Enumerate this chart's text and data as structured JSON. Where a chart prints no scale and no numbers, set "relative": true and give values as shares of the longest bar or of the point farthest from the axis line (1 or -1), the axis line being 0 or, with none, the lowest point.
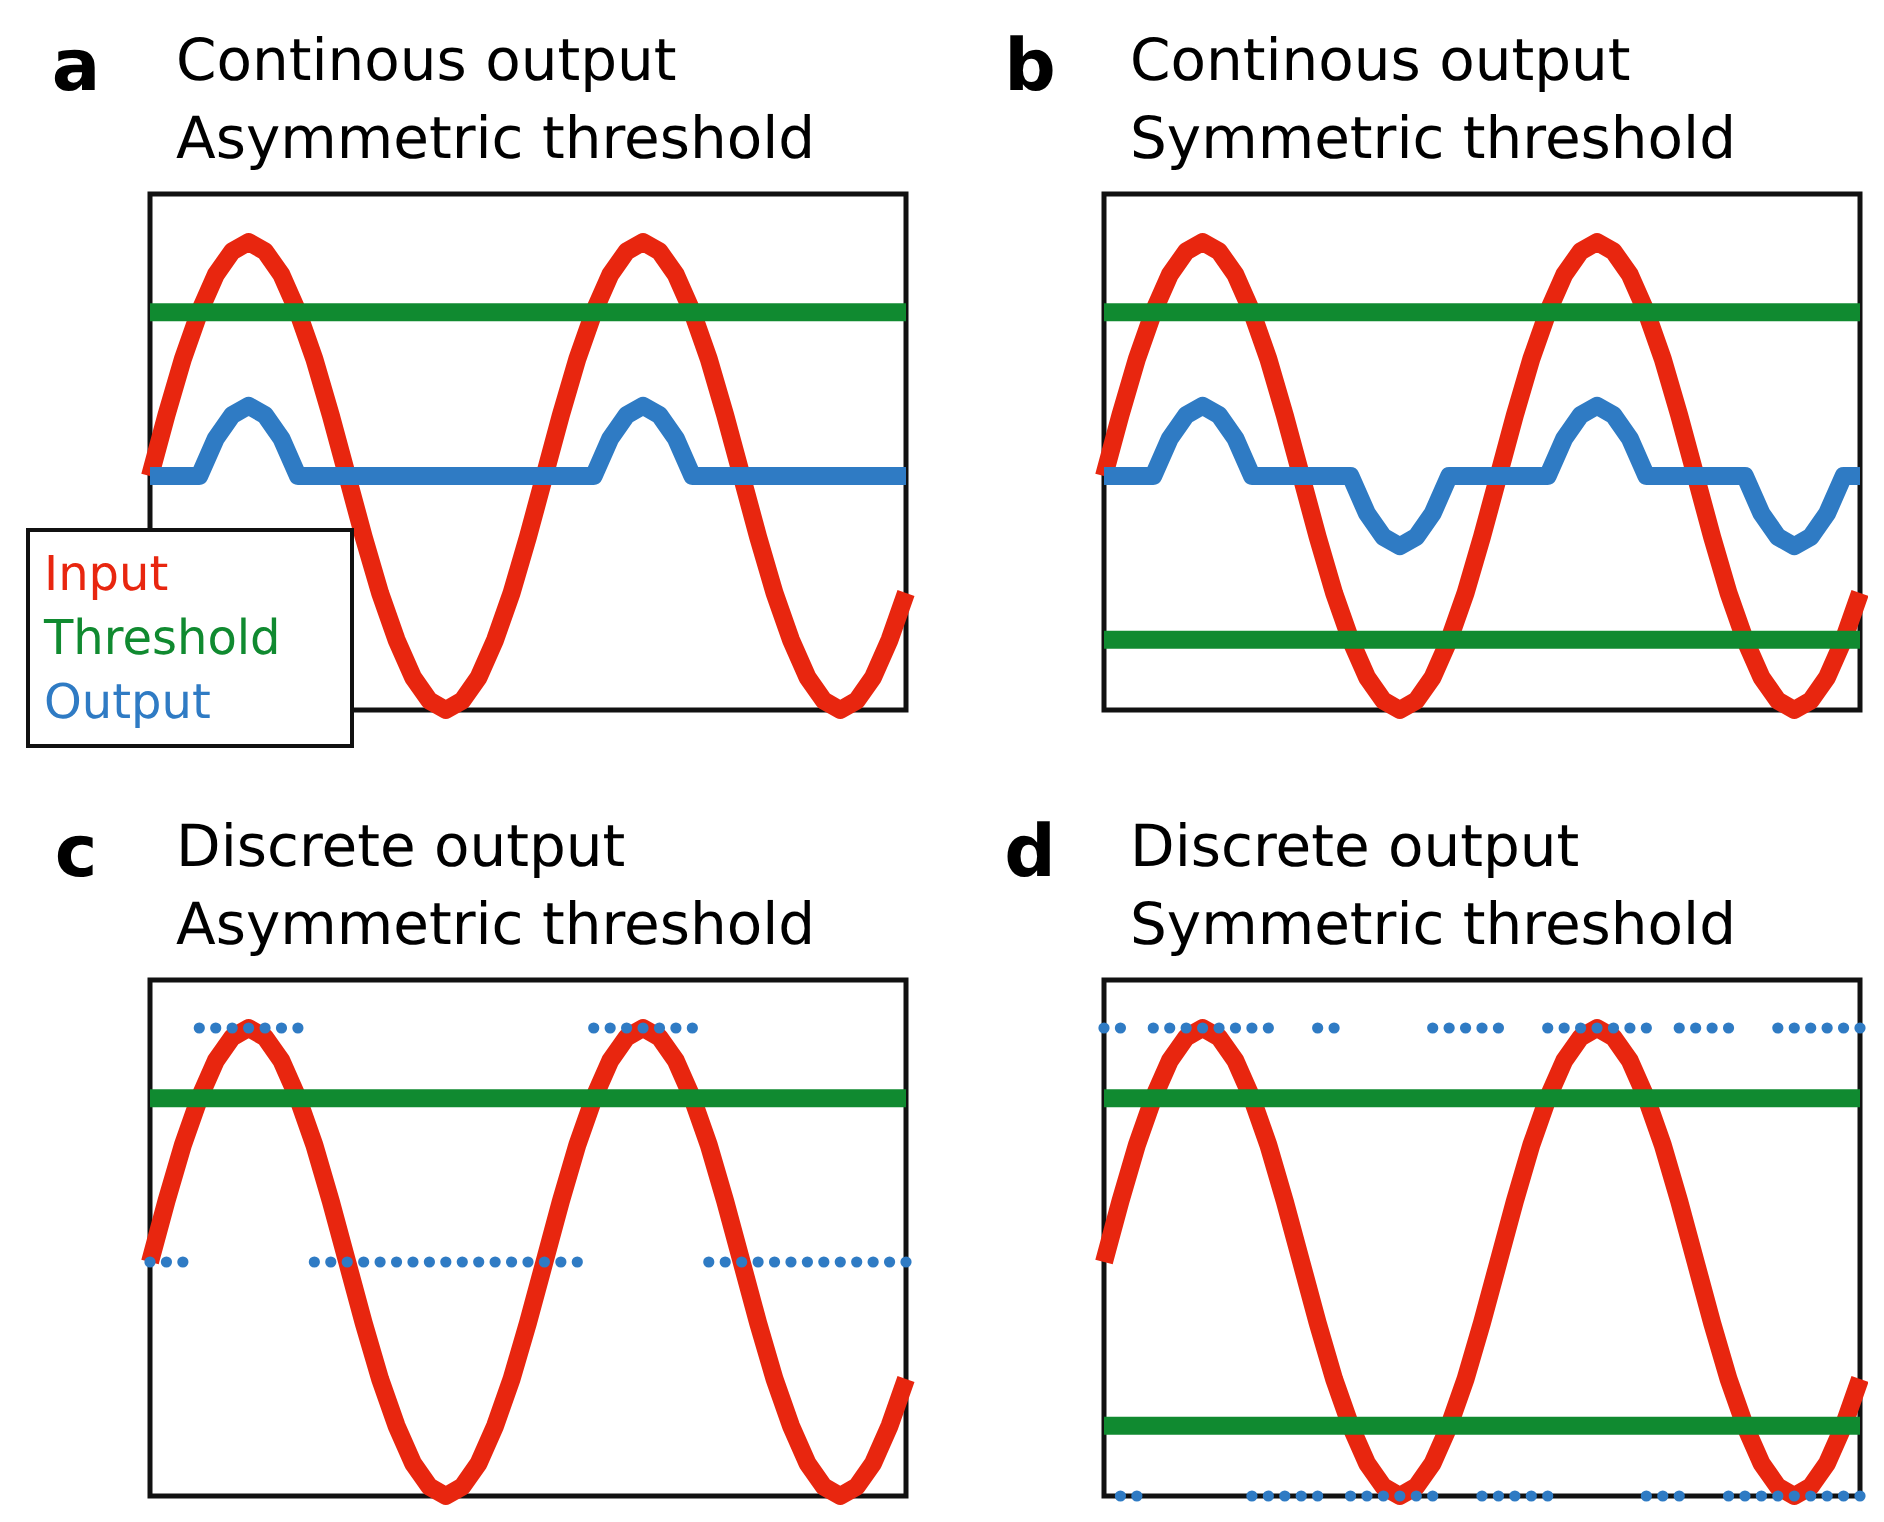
{
  "chart_data": [
    {
      "type": "line",
      "relative": true,
      "title": "Continous output",
      "subtitle": "Asymmetric threshold",
      "annotations": [
        "a"
      ],
      "legend": "bottom left",
      "categories": [
        null,
        null,
        null,
        null,
        null,
        null,
        null,
        null,
        null,
        null,
        null,
        null,
        null,
        null,
        null,
        null,
        null,
        null,
        null,
        null,
        null,
        null,
        null,
        null,
        null,
        null,
        null,
        null,
        null,
        null,
        null,
        null,
        null,
        null,
        null,
        null,
        null,
        null,
        null,
        null,
        null,
        null,
        null,
        null,
        null,
        null,
        null
      ],
      "series": [
        {
          "name": "Input",
          "color": "#e8260f",
          "values": [
            0.5,
            0.63,
            0.75,
            0.85,
            0.93,
            0.98,
            1,
            0.98,
            0.93,
            0.85,
            0.75,
            0.63,
            0.5,
            0.37,
            0.25,
            0.15,
            0.07,
            0.02,
            0,
            0.02,
            0.07,
            0.15,
            0.25,
            0.37,
            0.5,
            0.63,
            0.75,
            0.85,
            0.93,
            0.98,
            1,
            0.98,
            0.93,
            0.85,
            0.75,
            0.63,
            0.5,
            0.37,
            0.25,
            0.15,
            0.07,
            0.02,
            0,
            0.02,
            0.07,
            0.15,
            0.25
          ]
        },
        {
          "name": "Threshold",
          "color": "#108a30",
          "values": [
            0.85,
            0.85,
            0.85,
            0.85,
            0.85,
            0.85,
            0.85,
            0.85,
            0.85,
            0.85,
            0.85,
            0.85,
            0.85,
            0.85,
            0.85,
            0.85,
            0.85,
            0.85,
            0.85,
            0.85,
            0.85,
            0.85,
            0.85,
            0.85,
            0.85,
            0.85,
            0.85,
            0.85,
            0.85,
            0.85,
            0.85,
            0.85,
            0.85,
            0.85,
            0.85,
            0.85,
            0.85,
            0.85,
            0.85,
            0.85,
            0.85,
            0.85,
            0.85,
            0.85,
            0.85,
            0.85,
            0.85
          ]
        },
        {
          "name": "Output",
          "color": "#2f7bc4",
          "values": [
            0.5,
            0.5,
            0.5,
            0.5,
            0.58,
            0.63,
            0.65,
            0.63,
            0.58,
            0.5,
            0.5,
            0.5,
            0.5,
            0.5,
            0.5,
            0.5,
            0.5,
            0.5,
            0.5,
            0.5,
            0.5,
            0.5,
            0.5,
            0.5,
            0.5,
            0.5,
            0.5,
            0.5,
            0.58,
            0.63,
            0.65,
            0.63,
            0.58,
            0.5,
            0.5,
            0.5,
            0.5,
            0.5,
            0.5,
            0.5,
            0.5,
            0.5,
            0.5,
            0.5,
            0.5,
            0.5,
            0.5
          ]
        }
      ]
    },
    {
      "type": "line",
      "relative": true,
      "title": "Continous output",
      "subtitle": "Symmetric threshold",
      "annotations": [
        "b"
      ],
      "categories": [
        null,
        null,
        null,
        null,
        null,
        null,
        null,
        null,
        null,
        null,
        null,
        null,
        null,
        null,
        null,
        null,
        null,
        null,
        null,
        null,
        null,
        null,
        null,
        null,
        null,
        null,
        null,
        null,
        null,
        null,
        null,
        null,
        null,
        null,
        null,
        null,
        null,
        null,
        null,
        null,
        null,
        null,
        null,
        null,
        null,
        null,
        null
      ],
      "series": [
        {
          "color": "#e8260f",
          "values": [
            0.5,
            0.63,
            0.75,
            0.85,
            0.93,
            0.98,
            1,
            0.98,
            0.93,
            0.85,
            0.75,
            0.63,
            0.5,
            0.37,
            0.25,
            0.15,
            0.07,
            0.02,
            0,
            0.02,
            0.07,
            0.15,
            0.25,
            0.37,
            0.5,
            0.63,
            0.75,
            0.85,
            0.93,
            0.98,
            1,
            0.98,
            0.93,
            0.85,
            0.75,
            0.63,
            0.5,
            0.37,
            0.25,
            0.15,
            0.07,
            0.02,
            0,
            0.02,
            0.07,
            0.15,
            0.25
          ]
        },
        {
          "color": "#108a30",
          "values": [
            0.85,
            0.85,
            0.85,
            0.85,
            0.85,
            0.85,
            0.85,
            0.85,
            0.85,
            0.85,
            0.85,
            0.85,
            0.85,
            0.85,
            0.85,
            0.85,
            0.85,
            0.85,
            0.85,
            0.85,
            0.85,
            0.85,
            0.85,
            0.85,
            0.85,
            0.85,
            0.85,
            0.85,
            0.85,
            0.85,
            0.85,
            0.85,
            0.85,
            0.85,
            0.85,
            0.85,
            0.85,
            0.85,
            0.85,
            0.85,
            0.85,
            0.85,
            0.85,
            0.85,
            0.85,
            0.85,
            0.85
          ]
        },
        {
          "color": "#108a30",
          "values": [
            0.15,
            0.15,
            0.15,
            0.15,
            0.15,
            0.15,
            0.15,
            0.15,
            0.15,
            0.15,
            0.15,
            0.15,
            0.15,
            0.15,
            0.15,
            0.15,
            0.15,
            0.15,
            0.15,
            0.15,
            0.15,
            0.15,
            0.15,
            0.15,
            0.15,
            0.15,
            0.15,
            0.15,
            0.15,
            0.15,
            0.15,
            0.15,
            0.15,
            0.15,
            0.15,
            0.15,
            0.15,
            0.15,
            0.15,
            0.15,
            0.15,
            0.15,
            0.15,
            0.15,
            0.15,
            0.15,
            0.15
          ]
        },
        {
          "color": "#2f7bc4",
          "values": [
            0.5,
            0.5,
            0.5,
            0.5,
            0.58,
            0.63,
            0.65,
            0.63,
            0.58,
            0.5,
            0.5,
            0.5,
            0.5,
            0.5,
            0.5,
            0.5,
            0.42,
            0.37,
            0.35,
            0.37,
            0.42,
            0.5,
            0.5,
            0.5,
            0.5,
            0.5,
            0.5,
            0.5,
            0.58,
            0.63,
            0.65,
            0.63,
            0.58,
            0.5,
            0.5,
            0.5,
            0.5,
            0.5,
            0.5,
            0.5,
            0.42,
            0.37,
            0.35,
            0.37,
            0.42,
            0.5,
            0.5
          ]
        }
      ]
    },
    {
      "type": "line",
      "relative": true,
      "title": "Discrete output",
      "subtitle": "Asymmetric threshold",
      "annotations": [
        "c"
      ],
      "categories": [
        null,
        null,
        null,
        null,
        null,
        null,
        null,
        null,
        null,
        null,
        null,
        null,
        null,
        null,
        null,
        null,
        null,
        null,
        null,
        null,
        null,
        null,
        null,
        null,
        null,
        null,
        null,
        null,
        null,
        null,
        null,
        null,
        null,
        null,
        null,
        null,
        null,
        null,
        null,
        null,
        null,
        null,
        null,
        null,
        null,
        null,
        null
      ],
      "series": [
        {
          "color": "#e8260f",
          "values": [
            0.5,
            0.63,
            0.75,
            0.85,
            0.93,
            0.98,
            1,
            0.98,
            0.93,
            0.85,
            0.75,
            0.63,
            0.5,
            0.37,
            0.25,
            0.15,
            0.07,
            0.02,
            0,
            0.02,
            0.07,
            0.15,
            0.25,
            0.37,
            0.5,
            0.63,
            0.75,
            0.85,
            0.93,
            0.98,
            1,
            0.98,
            0.93,
            0.85,
            0.75,
            0.63,
            0.5,
            0.37,
            0.25,
            0.15,
            0.07,
            0.02,
            0,
            0.02,
            0.07,
            0.15,
            0.25
          ]
        },
        {
          "color": "#108a30",
          "values": [
            0.85,
            0.85,
            0.85,
            0.85,
            0.85,
            0.85,
            0.85,
            0.85,
            0.85,
            0.85,
            0.85,
            0.85,
            0.85,
            0.85,
            0.85,
            0.85,
            0.85,
            0.85,
            0.85,
            0.85,
            0.85,
            0.85,
            0.85,
            0.85,
            0.85,
            0.85,
            0.85,
            0.85,
            0.85,
            0.85,
            0.85,
            0.85,
            0.85,
            0.85,
            0.85,
            0.85,
            0.85,
            0.85,
            0.85,
            0.85,
            0.85,
            0.85,
            0.85,
            0.85,
            0.85,
            0.85,
            0.85
          ]
        },
        {
          "type": "scatter",
          "color": "#2f7bc4",
          "values": [
            0.5,
            0.5,
            0.5,
            1,
            1,
            1,
            1,
            1,
            1,
            1,
            0.5,
            0.5,
            0.5,
            0.5,
            0.5,
            0.5,
            0.5,
            0.5,
            0.5,
            0.5,
            0.5,
            0.5,
            0.5,
            0.5,
            0.5,
            0.5,
            0.5,
            1,
            1,
            1,
            1,
            1,
            1,
            1,
            0.5,
            0.5,
            0.5,
            0.5,
            0.5,
            0.5,
            0.5,
            0.5,
            0.5,
            0.5,
            0.5,
            0.5,
            0.5
          ]
        }
      ]
    },
    {
      "type": "line",
      "relative": true,
      "title": "Discrete output",
      "subtitle": "Symmetric threshold",
      "annotations": [
        "d"
      ],
      "categories": [
        null,
        null,
        null,
        null,
        null,
        null,
        null,
        null,
        null,
        null,
        null,
        null,
        null,
        null,
        null,
        null,
        null,
        null,
        null,
        null,
        null,
        null,
        null,
        null,
        null,
        null,
        null,
        null,
        null,
        null,
        null,
        null,
        null,
        null,
        null,
        null,
        null,
        null,
        null,
        null,
        null,
        null,
        null,
        null,
        null,
        null,
        null
      ],
      "series": [
        {
          "color": "#e8260f",
          "values": [
            0.5,
            0.63,
            0.75,
            0.85,
            0.93,
            0.98,
            1,
            0.98,
            0.93,
            0.85,
            0.75,
            0.63,
            0.5,
            0.37,
            0.25,
            0.15,
            0.07,
            0.02,
            0,
            0.02,
            0.07,
            0.15,
            0.25,
            0.37,
            0.5,
            0.63,
            0.75,
            0.85,
            0.93,
            0.98,
            1,
            0.98,
            0.93,
            0.85,
            0.75,
            0.63,
            0.5,
            0.37,
            0.25,
            0.15,
            0.07,
            0.02,
            0,
            0.02,
            0.07,
            0.15,
            0.25
          ]
        },
        {
          "color": "#108a30",
          "values": [
            0.85,
            0.85,
            0.85,
            0.85,
            0.85,
            0.85,
            0.85,
            0.85,
            0.85,
            0.85,
            0.85,
            0.85,
            0.85,
            0.85,
            0.85,
            0.85,
            0.85,
            0.85,
            0.85,
            0.85,
            0.85,
            0.85,
            0.85,
            0.85,
            0.85,
            0.85,
            0.85,
            0.85,
            0.85,
            0.85,
            0.85,
            0.85,
            0.85,
            0.85,
            0.85,
            0.85,
            0.85,
            0.85,
            0.85,
            0.85,
            0.85,
            0.85,
            0.85,
            0.85,
            0.85,
            0.85,
            0.85
          ]
        },
        {
          "color": "#108a30",
          "values": [
            0.15,
            0.15,
            0.15,
            0.15,
            0.15,
            0.15,
            0.15,
            0.15,
            0.15,
            0.15,
            0.15,
            0.15,
            0.15,
            0.15,
            0.15,
            0.15,
            0.15,
            0.15,
            0.15,
            0.15,
            0.15,
            0.15,
            0.15,
            0.15,
            0.15,
            0.15,
            0.15,
            0.15,
            0.15,
            0.15,
            0.15,
            0.15,
            0.15,
            0.15,
            0.15,
            0.15,
            0.15,
            0.15,
            0.15,
            0.15,
            0.15,
            0.15,
            0.15,
            0.15,
            0.15,
            0.15,
            0.15
          ]
        },
        {
          "type": "scatter",
          "color": "#2f7bc4",
          "values": [
            1,
            1,
            null,
            1,
            1,
            1,
            1,
            1,
            1,
            1,
            1,
            null,
            null,
            1,
            1,
            null,
            null,
            null,
            null,
            null,
            1,
            1,
            1,
            1,
            1,
            null,
            null,
            1,
            1,
            1,
            1,
            1,
            1,
            1,
            null,
            1,
            1,
            1,
            1,
            null,
            null,
            1,
            1,
            1,
            1,
            1,
            1
          ]
        },
        {
          "type": "scatter",
          "color": "#2f7bc4",
          "values": [
            null,
            0,
            0,
            null,
            null,
            null,
            null,
            null,
            null,
            0,
            0,
            0,
            0,
            0,
            null,
            0,
            0,
            0,
            0,
            0,
            0,
            null,
            null,
            0,
            0,
            0,
            0,
            0,
            null,
            null,
            null,
            null,
            null,
            0,
            0,
            0,
            null,
            null,
            0,
            0,
            0,
            0,
            0,
            0,
            0,
            0,
            0
          ]
        }
      ]
    }
  ]
}
